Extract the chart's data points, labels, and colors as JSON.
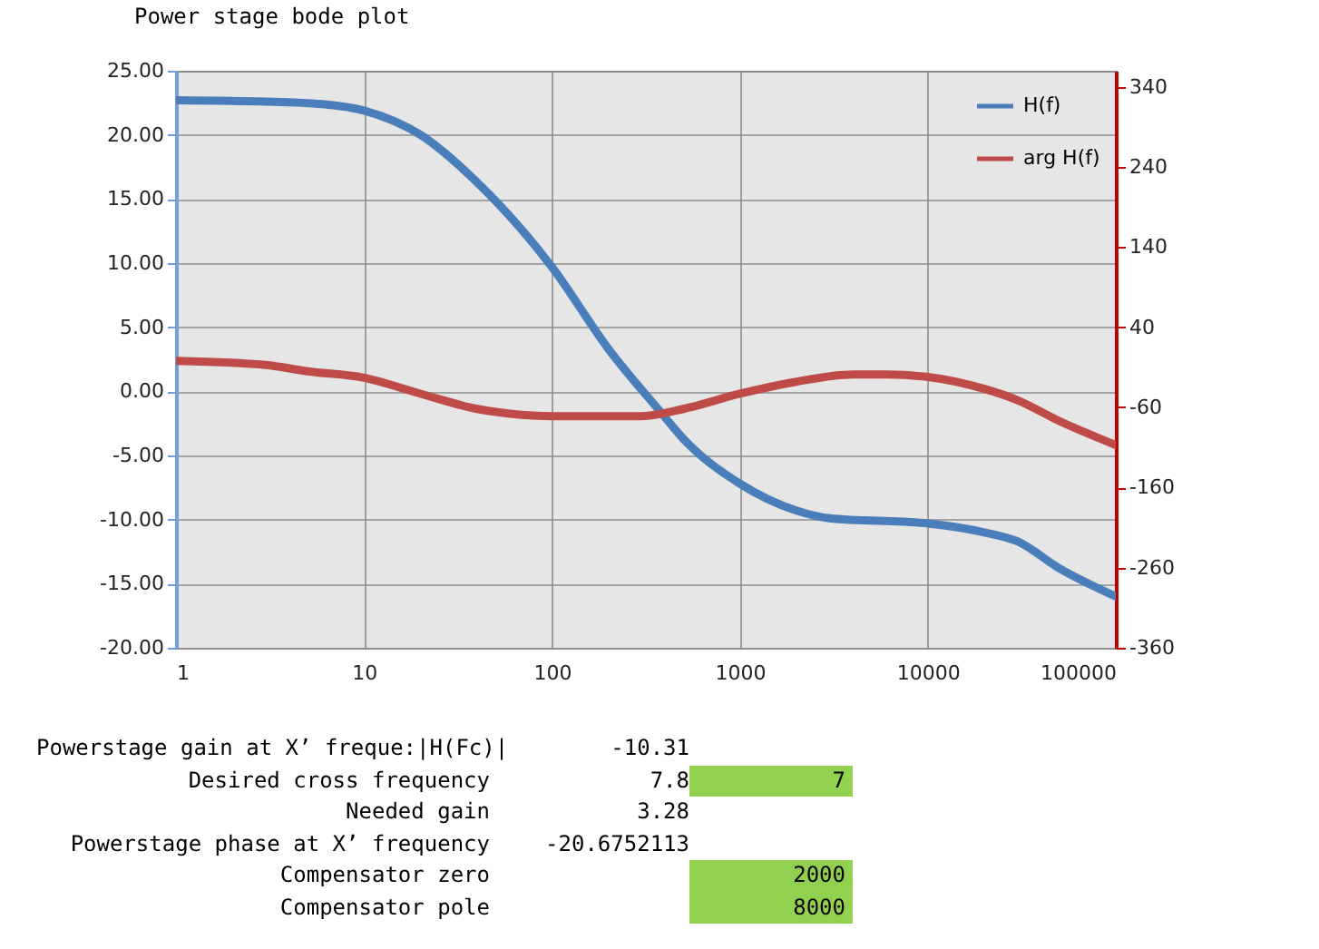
{
  "chart_data": {
    "type": "line",
    "title": "Power stage bode plot",
    "xlim": [
      1,
      100000
    ],
    "xticks": [
      1,
      10,
      100,
      1000,
      10000,
      100000
    ],
    "log": "x",
    "ylim": [
      -20,
      25
    ],
    "yticks": [
      {
        "value": -20,
        "label": "-20.00"
      },
      {
        "value": -15,
        "label": "-15.00"
      },
      {
        "value": -10,
        "label": "-10.00"
      },
      {
        "value": -5,
        "label": "-5.00"
      },
      {
        "value": 0,
        "label": "0.00"
      },
      {
        "value": 5,
        "label": "5.00"
      },
      {
        "value": 10,
        "label": "10.00"
      },
      {
        "value": 15,
        "label": "15.00"
      },
      {
        "value": 20,
        "label": "20.00"
      },
      {
        "value": 25,
        "label": "25.00"
      }
    ],
    "y2lim": [
      -360,
      360
    ],
    "y2ticks": [
      -360,
      -260,
      -160,
      -60,
      40,
      140,
      240,
      340
    ],
    "grid": true,
    "legend": "top right",
    "line_style": "solid",
    "series": [
      {
        "name": "H(f)",
        "color": "#4a7ebb",
        "x": [
          1,
          3,
          6,
          10,
          20,
          40,
          100,
          200,
          378,
          500,
          1000,
          2000,
          3000,
          10000,
          20000,
          30000,
          50000,
          100000
        ],
        "values": [
          22.7,
          22.6,
          22.4,
          21.9,
          20.0,
          16.3,
          9.7,
          3.3,
          -1.6,
          -3.7,
          -7.2,
          -9.3,
          -9.9,
          -10.3,
          -11.0,
          -11.7,
          -13.8,
          -16.0
        ]
      },
      {
        "name": "arg H(f)",
        "color": "#be4b48",
        "axis": "y2",
        "x": [
          1,
          3,
          5,
          10,
          20,
          40,
          60,
          100,
          200,
          300,
          500,
          1000,
          2000,
          4000,
          6000,
          10000,
          20000,
          30000,
          50000,
          100000
        ],
        "values": [
          -2,
          -7,
          -15,
          -23,
          -43,
          -62,
          -68,
          -71,
          -71,
          -71,
          -62,
          -43,
          -28,
          -19,
          -19,
          -22,
          -37,
          -51,
          -77,
          -107
        ]
      }
    ],
    "annotations": [
      "Powerstage gain at X’ freque:|H(Fc)|\t-10.31",
      "Desired cross frequency\t7.8\t7",
      "Needed gain\t3.28",
      "Powerstage phase at X’ frequency\t-20.6752113",
      "Compensator zero\t\t2000",
      "Compensator pole\t\t8000"
    ]
  }
}
